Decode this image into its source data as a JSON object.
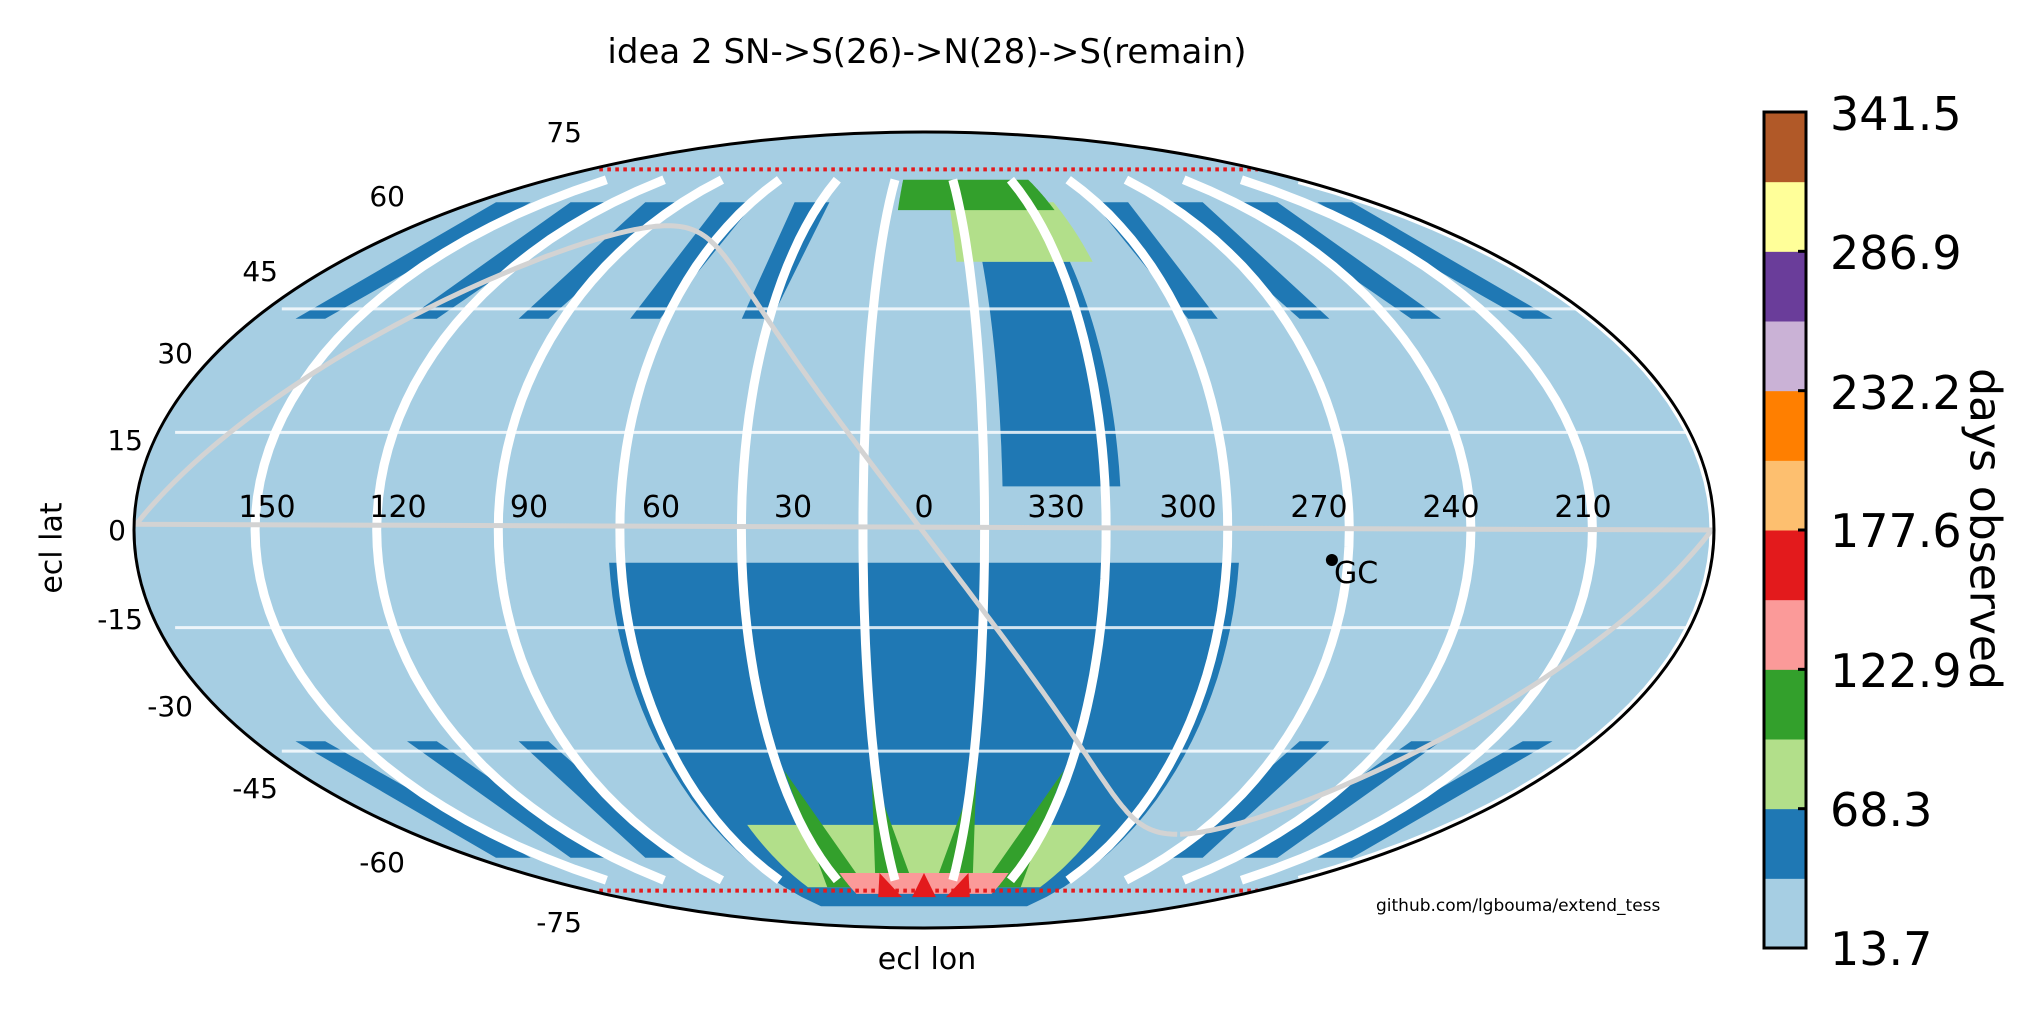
{
  "chart_data": {
    "type": "scatter",
    "projection": "mollweide",
    "title": "idea 2 SN->S(26)->N(28)->S(remain)",
    "xlabel": "ecl lon",
    "ylabel": "ecl lat",
    "lon_ticks": [
      "150",
      "120",
      "90",
      "60",
      "30",
      "0",
      "330",
      "300",
      "270",
      "240",
      "210"
    ],
    "lat_ticks": [
      "75",
      "60",
      "45",
      "30",
      "15",
      "0",
      "-15",
      "-30",
      "-45",
      "-60",
      "-75"
    ],
    "colorbar": {
      "label": "days observed",
      "tick_labels": [
        "341.5",
        "286.9",
        "232.2",
        "177.6",
        "122.9",
        "68.3",
        "13.7"
      ],
      "range": [
        13.7,
        341.5
      ],
      "n_bins": 12,
      "colors": [
        "#a6cee3",
        "#1f78b4",
        "#b2df8a",
        "#33a02c",
        "#fb9a99",
        "#e31a1c",
        "#fdbf6f",
        "#ff7f00",
        "#cab2d6",
        "#6a3d9a",
        "#ffff99",
        "#b15928"
      ]
    },
    "annotation": "GC",
    "credit": "github.com/lgbouma/extend_tess",
    "colors": {
      "gap": "#ffffff",
      "galactic_plane": "#d3d3d3",
      "gc_marker": "#000000",
      "outline": "#000000"
    }
  }
}
